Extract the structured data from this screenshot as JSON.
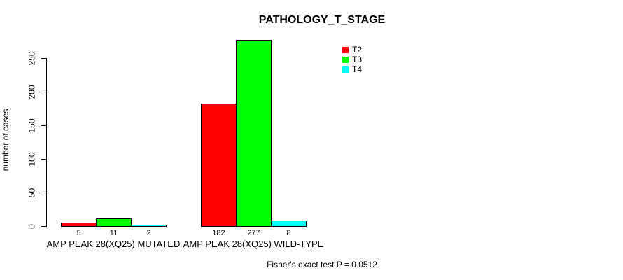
{
  "chart_data": {
    "type": "bar",
    "title": "PATHOLOGY_T_STAGE",
    "xlabel": "",
    "ylabel": "number of cases",
    "categories": [
      "AMP PEAK 28(XQ25) MUTATED",
      "AMP PEAK 28(XQ25) WILD-TYPE"
    ],
    "series": [
      {
        "name": "T2",
        "color": "#FF0000",
        "values": [
          5,
          182
        ]
      },
      {
        "name": "T3",
        "color": "#00FF00",
        "values": [
          11,
          277
        ]
      },
      {
        "name": "T4",
        "color": "#00FFFF",
        "values": [
          2,
          8
        ]
      }
    ],
    "show_value_labels": true,
    "yticks": [
      0,
      50,
      100,
      150,
      200,
      250
    ],
    "ylim": [
      0,
      250
    ],
    "grid": false,
    "legend_position": "top-right",
    "bar_border_color": "#000000",
    "background_color": "#FFFFFF",
    "annotation": "Fisher's exact test P = 0.0512"
  }
}
